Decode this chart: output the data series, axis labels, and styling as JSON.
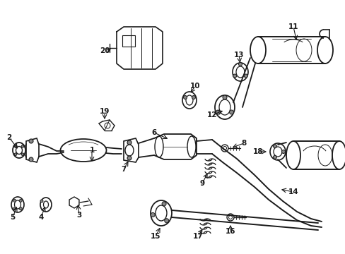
{
  "background_color": "#ffffff",
  "line_color": "#1a1a1a",
  "text_color": "#1a1a1a",
  "figsize": [
    4.89,
    3.6
  ],
  "dpi": 100,
  "xlim": [
    0,
    489
  ],
  "ylim": [
    0,
    360
  ]
}
